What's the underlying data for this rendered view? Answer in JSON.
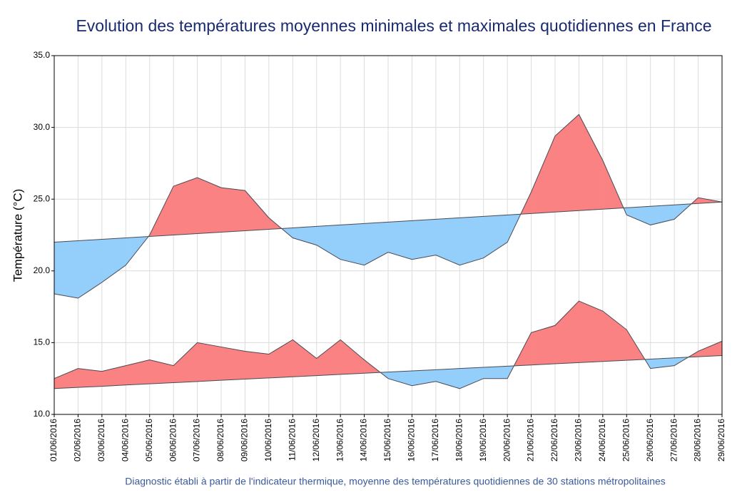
{
  "chart_data": {
    "type": "difference-area",
    "title": "Evolution des températures moyennes minimales et maximales quotidiennes en France",
    "ylabel": "Température (°C)",
    "footnote": "Diagnostic établi à partir de l'indicateur thermique, moyenne des températures quotidiennes de 30 stations métropolitaines",
    "x": [
      "01/06/2016",
      "02/06/2016",
      "03/06/2016",
      "04/06/2016",
      "05/06/2016",
      "06/06/2016",
      "07/06/2016",
      "08/06/2016",
      "09/06/2016",
      "10/06/2016",
      "11/06/2016",
      "12/06/2016",
      "13/06/2016",
      "14/06/2016",
      "15/06/2016",
      "16/06/2016",
      "17/06/2016",
      "18/06/2016",
      "19/06/2016",
      "20/06/2016",
      "21/06/2016",
      "22/06/2016",
      "23/06/2016",
      "24/06/2016",
      "25/06/2016",
      "26/06/2016",
      "27/06/2016",
      "28/06/2016",
      "29/06/2016"
    ],
    "series": [
      {
        "values": [
          18.4,
          18.1,
          19.2,
          20.4,
          22.5,
          25.9,
          26.5,
          25.8,
          25.6,
          23.7,
          22.3,
          21.8,
          20.8,
          20.4,
          21.3,
          20.8,
          21.1,
          20.4,
          20.9,
          22.0,
          25.5,
          29.4,
          30.9,
          27.7,
          23.9,
          23.2,
          23.6,
          25.1,
          24.8
        ],
        "reference": [
          22.0,
          22.1,
          22.2,
          22.3,
          22.4,
          22.5,
          22.6,
          22.7,
          22.8,
          22.9,
          23.0,
          23.1,
          23.2,
          23.3,
          23.4,
          23.5,
          23.6,
          23.7,
          23.8,
          23.9,
          24.0,
          24.1,
          24.2,
          24.3,
          24.4,
          24.5,
          24.6,
          24.7,
          24.8
        ]
      },
      {
        "values": [
          12.5,
          13.2,
          13.0,
          13.4,
          13.8,
          13.4,
          15.0,
          14.7,
          14.4,
          14.2,
          15.2,
          13.9,
          15.2,
          13.8,
          12.5,
          12.0,
          12.3,
          11.8,
          12.5,
          12.5,
          15.7,
          16.2,
          17.9,
          17.2,
          15.9,
          13.2,
          13.4,
          14.4,
          15.1
        ],
        "reference": [
          11.8,
          11.88,
          11.96,
          12.05,
          12.13,
          12.21,
          12.29,
          12.38,
          12.46,
          12.54,
          12.62,
          12.7,
          12.79,
          12.87,
          12.95,
          13.03,
          13.11,
          13.2,
          13.28,
          13.36,
          13.44,
          13.53,
          13.61,
          13.69,
          13.77,
          13.85,
          13.94,
          14.02,
          14.1
        ]
      }
    ],
    "above_color": "#fa8282",
    "below_color": "#93cffa",
    "line_color": "#4a4a55",
    "ylim": [
      10,
      35
    ],
    "yticks": [
      {
        "value": 10,
        "label": "10.0"
      },
      {
        "value": 15,
        "label": "15.0"
      },
      {
        "value": 20,
        "label": "20.0"
      },
      {
        "value": 25,
        "label": "25.0"
      },
      {
        "value": 30,
        "label": "30.0"
      },
      {
        "value": 35,
        "label": "35.0"
      }
    ],
    "grid": true
  }
}
